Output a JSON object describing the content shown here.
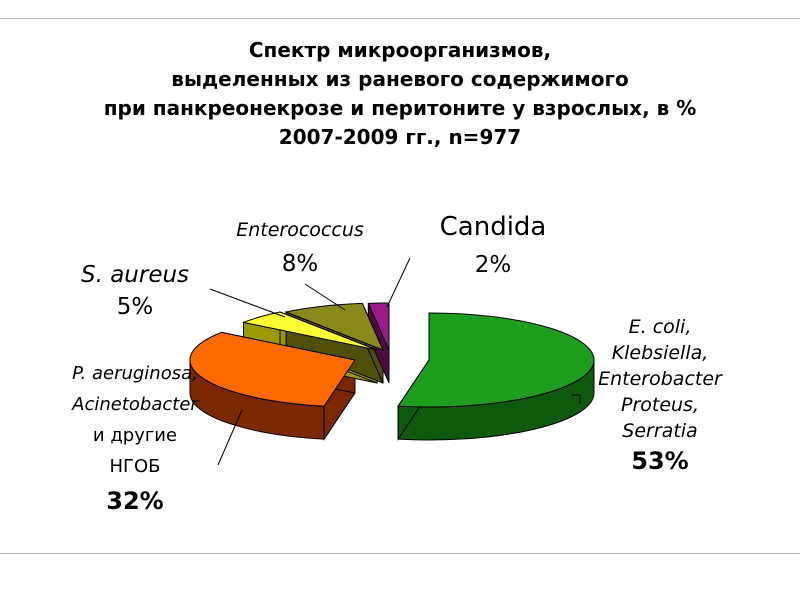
{
  "title_lines": [
    "Спектр микроорганизмов,",
    "выделенных из раневого содержимого",
    "при панкреонекрозе и перитоните у взрослых, в %",
    "2007-2009 гг., n=977"
  ],
  "chart_data": {
    "type": "pie",
    "title": "Спектр микроорганизмов, выделенных из раневого содержимого при панкреонекрозе и перитоните у взрослых, в % 2007-2009 гг., n=977",
    "slices": [
      {
        "label_lines": [
          "E. coli,",
          "Klebsiella,",
          "Enterobacter",
          "Proteus,",
          "Serratia"
        ],
        "value_text": "53%",
        "value": 53,
        "color": "#1e9e1e",
        "side_color": "#0d5a0d"
      },
      {
        "label_lines": [
          "P. aeruginosa,",
          "Acinetobacter",
          "и другие",
          "НГОБ"
        ],
        "value_text": "32%",
        "value": 32,
        "color": "#ff6a00",
        "side_color": "#7a2800"
      },
      {
        "label_lines": [
          "S. aureus"
        ],
        "value_text": "5%",
        "value": 5,
        "color": "#ffff33",
        "side_color": "#9a9a00"
      },
      {
        "label_lines": [
          "Enterococcus"
        ],
        "value_text": "8%",
        "value": 8,
        "color": "#8a8a1a",
        "side_color": "#4f4f0a"
      },
      {
        "label_lines": [
          "Candida"
        ],
        "value_text": "2%",
        "value": 2,
        "color": "#9b1b8c",
        "side_color": "#4d0a45"
      }
    ]
  }
}
